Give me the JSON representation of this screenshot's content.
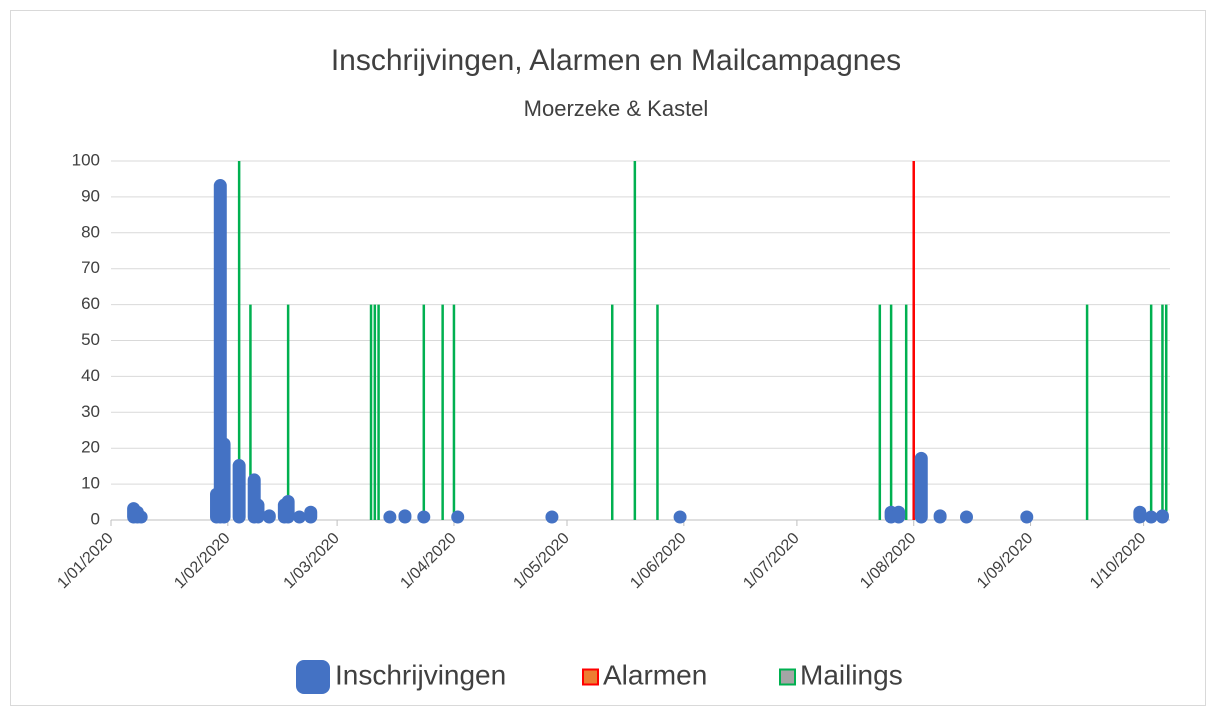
{
  "chart_data": {
    "type": "line",
    "title": "Inschrijvingen, Alarmen en Mailcampagnes",
    "subtitle": "Moerzeke & Kastel",
    "xlim": [
      "2020-01-01",
      "2020-10-08"
    ],
    "xticks": [
      {
        "value": "2020-01-01",
        "label": "1/01/2020"
      },
      {
        "value": "2020-02-01",
        "label": "1/02/2020"
      },
      {
        "value": "2020-03-01",
        "label": "1/03/2020"
      },
      {
        "value": "2020-04-01",
        "label": "1/04/2020"
      },
      {
        "value": "2020-05-01",
        "label": "1/05/2020"
      },
      {
        "value": "2020-06-01",
        "label": "1/06/2020"
      },
      {
        "value": "2020-07-01",
        "label": "1/07/2020"
      },
      {
        "value": "2020-08-01",
        "label": "1/08/2020"
      },
      {
        "value": "2020-09-01",
        "label": "1/09/2020"
      },
      {
        "value": "2020-10-01",
        "label": "1/10/2020"
      }
    ],
    "ylim": [
      0,
      100
    ],
    "yticks": [
      0,
      10,
      20,
      30,
      40,
      50,
      60,
      70,
      80,
      90,
      100
    ],
    "grid": true,
    "legend": "bottom",
    "series": [
      {
        "name": "Inschrijvingen",
        "color": "#4472c4",
        "fill": "#4472c4",
        "x": [
          "2020-01-07",
          "2020-01-08",
          "2020-01-09",
          "2020-01-29",
          "2020-01-30",
          "2020-01-31",
          "2020-02-04",
          "2020-02-08",
          "2020-02-09",
          "2020-02-12",
          "2020-02-16",
          "2020-02-17",
          "2020-02-20",
          "2020-02-23",
          "2020-03-15",
          "2020-03-19",
          "2020-03-24",
          "2020-04-02",
          "2020-04-27",
          "2020-05-31",
          "2020-07-26",
          "2020-07-28",
          "2020-08-03",
          "2020-08-08",
          "2020-08-15",
          "2020-08-31",
          "2020-09-30",
          "2020-10-03",
          "2020-10-06"
        ],
        "values": [
          4,
          3,
          1,
          8,
          94,
          22,
          16,
          12,
          5,
          2,
          5,
          6,
          1,
          3,
          1,
          2,
          1,
          1,
          1,
          1,
          3,
          3,
          18,
          2,
          1,
          1,
          3,
          1,
          2
        ]
      },
      {
        "name": "Alarmen",
        "color": "#ff0000",
        "fill": "#ed7d31",
        "x": [
          "2020-08-01"
        ],
        "values": [
          100
        ]
      },
      {
        "name": "Mailings",
        "color": "#00b050",
        "fill": "#a5a5a5",
        "x": [
          "2020-01-31",
          "2020-02-04",
          "2020-02-07",
          "2020-02-17",
          "2020-03-10",
          "2020-03-11",
          "2020-03-12",
          "2020-03-24",
          "2020-03-29",
          "2020-04-01",
          "2020-05-13",
          "2020-05-19",
          "2020-05-25",
          "2020-07-23",
          "2020-07-26",
          "2020-07-30",
          "2020-08-01",
          "2020-09-16",
          "2020-10-03",
          "2020-10-06",
          "2020-10-07"
        ],
        "values": [
          60,
          100,
          60,
          60,
          60,
          60,
          60,
          60,
          60,
          60,
          60,
          100,
          60,
          60,
          60,
          60,
          60,
          60,
          60,
          60,
          60
        ]
      }
    ]
  }
}
